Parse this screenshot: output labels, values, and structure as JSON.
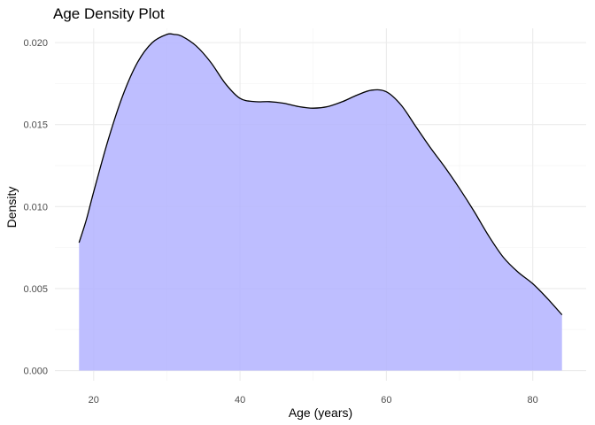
{
  "chart_data": {
    "type": "area",
    "title": "Age Density Plot",
    "xlabel": "Age (years)",
    "ylabel": "Density",
    "xlim": [
      14.7,
      87.3
    ],
    "ylim": [
      -0.00062,
      0.02087
    ],
    "x_ticks": [
      20,
      40,
      60,
      80
    ],
    "x_tick_labels": [
      "20",
      "40",
      "60",
      "80"
    ],
    "x_minor_ticks": [
      30,
      50,
      70
    ],
    "y_ticks": [
      0,
      0.005,
      0.01,
      0.015,
      0.02
    ],
    "y_tick_labels": [
      "0.000",
      "0.005",
      "0.010",
      "0.015",
      "0.020"
    ],
    "y_minor_ticks": [
      0.0025,
      0.0075,
      0.0125,
      0.0175
    ],
    "grid": true,
    "legend": "none",
    "fill_color": "#b3b3ff",
    "line_color": "#000000",
    "series": [
      {
        "x": [
          18,
          19,
          20,
          22,
          24,
          26,
          28,
          30,
          31,
          32,
          34,
          36,
          38,
          40,
          42,
          44,
          46,
          48,
          50,
          52,
          54,
          56,
          58,
          60,
          62,
          64,
          66,
          68,
          70,
          72,
          74,
          76,
          78,
          80,
          82,
          84
        ],
        "y": [
          0.0078,
          0.0092,
          0.0109,
          0.0141,
          0.0168,
          0.0188,
          0.02,
          0.0205,
          0.0205,
          0.0204,
          0.0198,
          0.0188,
          0.0175,
          0.0166,
          0.0164,
          0.0164,
          0.0163,
          0.0161,
          0.016,
          0.0161,
          0.0164,
          0.0168,
          0.0171,
          0.017,
          0.0162,
          0.0149,
          0.0136,
          0.0124,
          0.0111,
          0.0097,
          0.0082,
          0.0069,
          0.006,
          0.0053,
          0.0044,
          0.0034
        ]
      }
    ]
  }
}
